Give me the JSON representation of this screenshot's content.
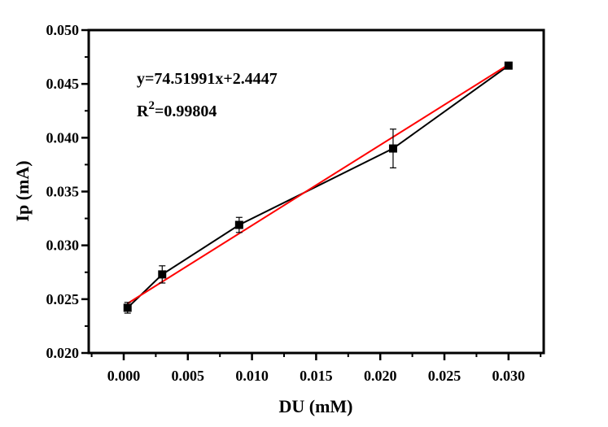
{
  "chart_data": {
    "type": "line",
    "title": "",
    "xlabel": "DU (mM)",
    "ylabel": "Ip (mA)",
    "xlim": [
      -0.0027,
      0.0328
    ],
    "ylim": [
      0.02,
      0.05
    ],
    "xticks": [
      "0.000",
      "0.005",
      "0.010",
      "0.015",
      "0.020",
      "0.025",
      "0.030"
    ],
    "yticks": [
      "0.020",
      "0.025",
      "0.030",
      "0.035",
      "0.040",
      "0.045",
      "0.050"
    ],
    "grid": false,
    "series": [
      {
        "color": "#000000",
        "marker": "square",
        "x": [
          0.0003,
          0.003,
          0.009,
          0.021,
          0.03
        ],
        "y": [
          0.0242,
          0.0273,
          0.0319,
          0.039,
          0.0467
        ],
        "error": [
          0.0005,
          0.0008,
          0.0007,
          0.0018,
          0.0001
        ]
      },
      {
        "color": "#ff0000",
        "type": "fit",
        "x": [
          0.0003,
          0.03
        ],
        "y": [
          0.0246,
          0.0468
        ]
      }
    ],
    "annotations": [
      "y=74.51991x+2.4447",
      "R",
      "2",
      "=0.99804"
    ]
  }
}
